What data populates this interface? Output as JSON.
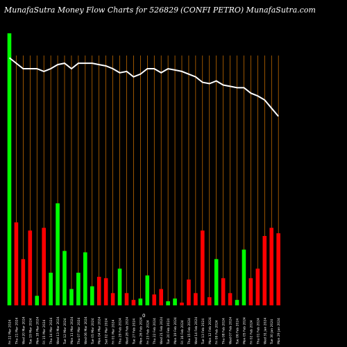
{
  "header": {
    "left": "MunafaSutra  Money Flow  Charts for 526829",
    "mid": "(CONFI PETRO) MunafaSutra.com"
  },
  "colors": {
    "background": "#000000",
    "up": "#00ff00",
    "down": "#ff0000",
    "grid": "#ff8c00",
    "line": "#ffffff",
    "label": "#ffffff"
  },
  "chart_data": {
    "type": "bar",
    "title": "MunafaSutra  Money Flow  Charts for 526829",
    "subtitle": "(CONFI PETRO) MunafaSutra.com",
    "ylim": [
      0,
      100
    ],
    "grid": "vertical",
    "zero_label": "0",
    "series": [
      {
        "name": "money_flow",
        "values": [
          100,
          30.5,
          17,
          27.5,
          3.5,
          28.5,
          12,
          37.5,
          20,
          6,
          12,
          19.5,
          7,
          10.5,
          10,
          4.5,
          13.5,
          4.5,
          2,
          2.5,
          11,
          4,
          6,
          1.5,
          2.5,
          1,
          9.5,
          4.5,
          27.5,
          3,
          17,
          10,
          4.5,
          2,
          20.5,
          10,
          13.5,
          25.5,
          28.5,
          26.5
        ],
        "direction": [
          "up",
          "down",
          "down",
          "down",
          "up",
          "down",
          "up",
          "up",
          "up",
          "up",
          "up",
          "up",
          "up",
          "down",
          "down",
          "down",
          "up",
          "down",
          "down",
          "up",
          "up",
          "down",
          "down",
          "up",
          "up",
          "down",
          "down",
          "down",
          "down",
          "down",
          "up",
          "down",
          "down",
          "up",
          "up",
          "down",
          "down",
          "down",
          "down",
          "down"
        ]
      },
      {
        "name": "price",
        "values": [
          91,
          89,
          87,
          87,
          87,
          86,
          87,
          88.5,
          89,
          87,
          89,
          89,
          89,
          88.5,
          88,
          87,
          85.5,
          86,
          84,
          85,
          87,
          87,
          85.5,
          87,
          86.5,
          86,
          85,
          84,
          82,
          81.5,
          82.5,
          81,
          80.5,
          80,
          80,
          78,
          77,
          75.5,
          72.5,
          69.5
        ]
      }
    ],
    "date_labels": [
      "Fri 22 Mar 2024",
      "Thu 21 Mar 2024",
      "Wed 20 Mar 2024",
      "Tue 19 Mar 2024",
      "Mon 18 Mar 2024",
      "Fri 15 Mar 2024",
      "Thu 14 Mar 2024",
      "Wed 13 Mar 2024",
      "Tue 12 Mar 2024",
      "Mon 11 Mar 2024",
      "Thu 07 Mar 2024",
      "Wed 06 Mar 2024",
      "Tue 05 Mar 2024",
      "Mon 04 Mar 2024",
      "Sat 02 Mar 2024",
      "Fri 01 Mar 2024",
      "Thu 29 Feb 2024",
      "Wed 28 Feb 2024",
      "Tue 27 Feb 2024",
      "Mon 26 Feb 2024",
      "Fri 23 Feb 2024",
      "Thu 22 Feb 2024",
      "Wed 21 Feb 2024",
      "Tue 20 Feb 2024",
      "Mon 19 Feb 2024",
      "Fri 16 Feb 2024",
      "Thu 15 Feb 2024",
      "Wed 14 Feb 2024",
      "Tue 13 Feb 2024",
      "Mon 12 Feb 2024",
      "Fri 09 Feb 2024",
      "Thu 08 Feb 2024",
      "Wed 07 Feb 2024",
      "Tue 06 Feb 2024",
      "Mon 05 Feb 2024",
      "Fri 02 Feb 2024",
      "Thu 01 Feb 2024",
      "Wed 31 Jan 2024",
      "Tue 30 Jan 2024",
      "Mon 29 Jan 2024"
    ]
  }
}
